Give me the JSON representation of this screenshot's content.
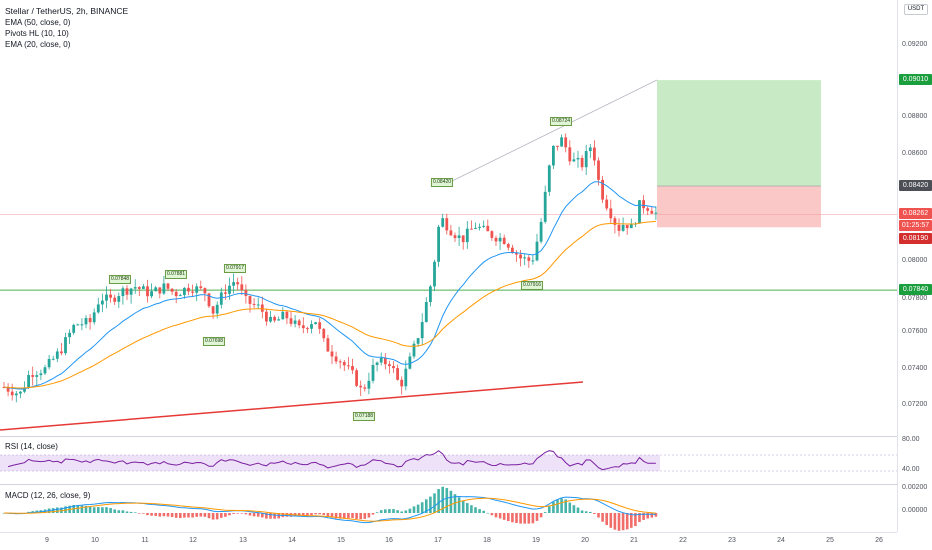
{
  "header": {
    "title": "Stellar / TetherUS, 2h, BINANCE",
    "indicators": [
      "EMA (50, close, 0)",
      "Pivots HL (10, 10)",
      "EMA (20, close, 0)"
    ]
  },
  "currency_badge": "USDT",
  "price_axis": {
    "labels": [
      "0.09200",
      "0.08800",
      "0.08600",
      "0.08000",
      "0.07800",
      "0.07600",
      "0.07400",
      "0.07200"
    ],
    "tags": {
      "target": "0.09010",
      "entry": "0.08420",
      "last": "0.08262",
      "countdown": "01:25:57",
      "stop": "0.08190",
      "support": "0.07840"
    }
  },
  "time_axis": {
    "labels": [
      "9",
      "10",
      "11",
      "12",
      "13",
      "14",
      "15",
      "16",
      "17",
      "18",
      "19",
      "20",
      "21",
      "22",
      "23",
      "24",
      "25",
      "26"
    ]
  },
  "pivots": {
    "highs": [
      "0.07848",
      "0.07881",
      "0.07917",
      "0.08420",
      "0.08724"
    ],
    "lows": [
      "0.07698",
      "0.07188",
      "0.07916"
    ]
  },
  "rsi": {
    "label": "RSI (14, close)",
    "axis": [
      "80.00",
      "40.00"
    ]
  },
  "macd": {
    "label": "MACD (12, 26, close, 9)",
    "axis": [
      "0.00200",
      "0.00000"
    ]
  },
  "colors": {
    "up": "#26a69a",
    "down": "#ef5350",
    "ema20": "#2196f3",
    "ema50": "#ff9800",
    "target_zone": "#c8ebc5",
    "stop_zone": "#fbc8c8",
    "support_line": "#4caf50",
    "trendline": "#e53935",
    "rsi": "#7b1fa2"
  }
}
